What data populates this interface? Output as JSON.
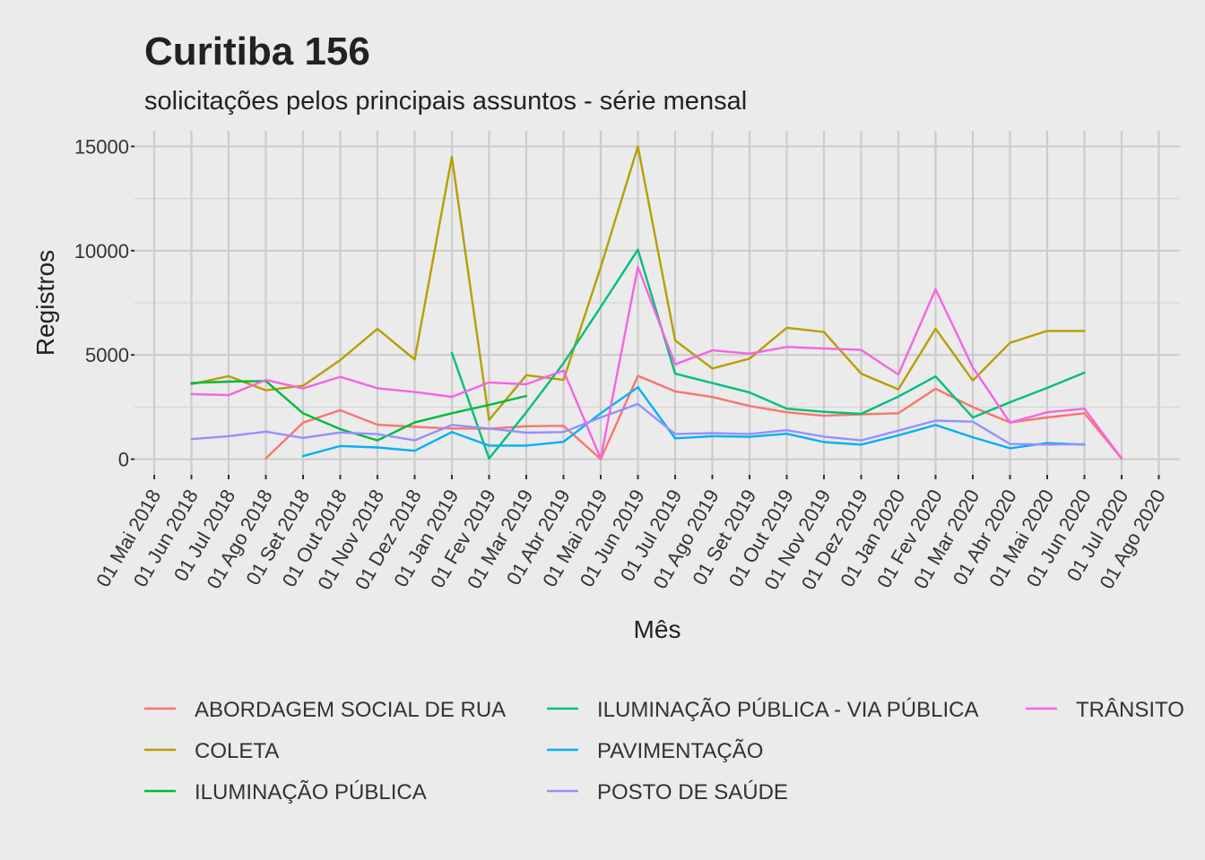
{
  "chart_data": {
    "type": "line",
    "title": "Curitiba 156",
    "subtitle": "solicitações pelos principais assuntos - série mensal",
    "xlabel": "Mês",
    "ylabel": "Registros",
    "ylim": [
      -750,
      15750
    ],
    "yticks": [
      0,
      5000,
      10000,
      15000
    ],
    "xlim": [
      "2018-05-01",
      "2020-08-01"
    ],
    "x": [
      "01 Mai 2018",
      "01 Jun 2018",
      "01 Jul 2018",
      "01 Ago 2018",
      "01 Set 2018",
      "01 Out 2018",
      "01 Nov 2018",
      "01 Dez 2018",
      "01 Jan 2019",
      "01 Fev 2019",
      "01 Mar 2019",
      "01 Abr 2019",
      "01 Mai 2019",
      "01 Jun 2019",
      "01 Jul 2019",
      "01 Ago 2019",
      "01 Set 2019",
      "01 Out 2019",
      "01 Nov 2019",
      "01 Dez 2019",
      "01 Jan 2020",
      "01 Fev 2020",
      "01 Mar 2020",
      "01 Abr 2020",
      "01 Mai 2020",
      "01 Jun 2020",
      "01 Jul 2020",
      "01 Ago 2020"
    ],
    "grid": true,
    "legend_position": "bottom",
    "series": [
      {
        "name": "ABORDAGEM SOCIAL DE RUA",
        "color": "#F8766D",
        "values": [
          null,
          null,
          null,
          30,
          1750,
          2350,
          1650,
          1550,
          1470,
          1460,
          1580,
          1600,
          0,
          4000,
          3250,
          2980,
          2550,
          2250,
          2080,
          2150,
          2200,
          3380,
          2500,
          1760,
          2000,
          2200,
          30,
          null
        ]
      },
      {
        "name": "COLETA",
        "color": "#B79F00",
        "values": [
          null,
          3600,
          3980,
          3300,
          3520,
          4750,
          6250,
          4780,
          14500,
          1880,
          4030,
          3800,
          9200,
          15000,
          5700,
          4350,
          4820,
          6300,
          6100,
          4100,
          3350,
          6260,
          3770,
          5580,
          6150,
          6150,
          null,
          null
        ]
      },
      {
        "name": "ILUMINAÇÃO PÚBLICA",
        "color": "#00BA38",
        "values": [
          null,
          3650,
          3720,
          3750,
          2200,
          1440,
          900,
          1760,
          2200,
          2600,
          3030,
          null,
          null,
          null,
          null,
          null,
          null,
          null,
          null,
          null,
          null,
          null,
          null,
          null,
          null,
          null,
          null,
          null
        ]
      },
      {
        "name": "ILUMINAÇÃO PÚBLICA - VIA PÚBLICA",
        "color": "#00BF7D",
        "values": [
          null,
          null,
          null,
          null,
          null,
          null,
          null,
          null,
          5100,
          30,
          2250,
          4600,
          7300,
          10050,
          4100,
          3650,
          3200,
          2420,
          2270,
          2170,
          3000,
          3970,
          2000,
          2730,
          3420,
          4150,
          null,
          null
        ]
      },
      {
        "name": "PAVIMENTAÇÃO",
        "color": "#00B0F6",
        "values": [
          null,
          null,
          null,
          null,
          150,
          630,
          560,
          400,
          1300,
          650,
          650,
          830,
          2200,
          3450,
          1000,
          1100,
          1070,
          1220,
          820,
          700,
          1140,
          1640,
          1050,
          520,
          770,
          700,
          null,
          null
        ]
      },
      {
        "name": "POSTO DE SAÚDE",
        "color": "#9590FF",
        "values": [
          null,
          960,
          1100,
          1320,
          1020,
          1280,
          1200,
          900,
          1640,
          1470,
          1270,
          1300,
          2000,
          2650,
          1210,
          1250,
          1210,
          1390,
          1080,
          900,
          1370,
          1850,
          1800,
          730,
          700,
          720,
          null,
          null
        ]
      },
      {
        "name": "TRÂNSITO",
        "color": "#F564E3",
        "values": [
          null,
          3120,
          3070,
          3800,
          3390,
          3950,
          3400,
          3220,
          2990,
          3680,
          3590,
          4250,
          30,
          9220,
          4550,
          5220,
          5060,
          5380,
          5310,
          5240,
          4060,
          8150,
          4400,
          1750,
          2250,
          2420,
          30,
          null
        ]
      }
    ]
  }
}
